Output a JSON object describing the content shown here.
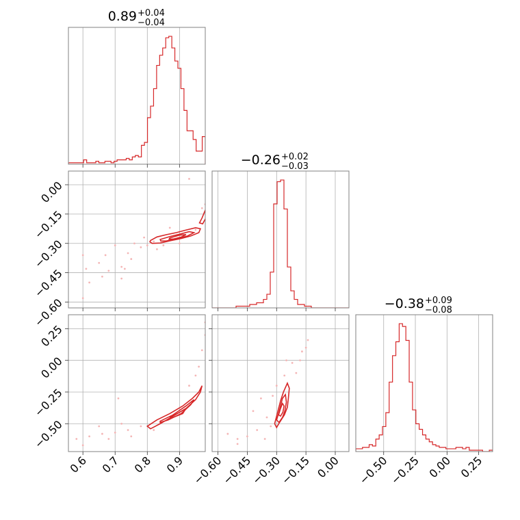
{
  "chart_data": {
    "type": "corner",
    "color": "#d62728",
    "point_color": "#f4b6b6",
    "grid": true,
    "parameters": [
      {
        "id": "p1",
        "range": [
          0.555,
          0.98
        ],
        "ticks": [
          0.6,
          0.7,
          0.8,
          0.9
        ],
        "tick_labels": [
          "0.6",
          "0.7",
          "0.8",
          "0.9"
        ],
        "title": {
          "median": "0.89",
          "upper": "+0.04",
          "lower": "−0.04"
        },
        "hist_counts": [
          1,
          1,
          1,
          1,
          1,
          3,
          1,
          1,
          1,
          2,
          1,
          1,
          2,
          2,
          1,
          2,
          3,
          3,
          3,
          4,
          3,
          5,
          6,
          5,
          13,
          15,
          32,
          40,
          52,
          68,
          75,
          80,
          87,
          88,
          80,
          71,
          66,
          52,
          37,
          23,
          23,
          17,
          9,
          9,
          19
        ]
      },
      {
        "id": "p2",
        "range": [
          -0.63,
          0.07
        ],
        "ticks": [
          0.0,
          -0.15,
          -0.3,
          -0.45,
          -0.6
        ],
        "tick_labels": [
          "0.00",
          "−0.15",
          "−0.30",
          "−0.45",
          "−0.60"
        ],
        "title": {
          "median": "−0.26",
          "upper": "+0.02",
          "lower": "−0.03"
        },
        "hist_counts": [
          0,
          0,
          0,
          0,
          0,
          0,
          0,
          1,
          1,
          1,
          1,
          2,
          2,
          3,
          3,
          5,
          8,
          21,
          61,
          74,
          75,
          58,
          24,
          10,
          5,
          2,
          2,
          1,
          1,
          0,
          0,
          0,
          0,
          0,
          0,
          0,
          0,
          0,
          0,
          0
        ]
      },
      {
        "id": "p3",
        "range": [
          -0.72,
          0.36
        ],
        "ticks": [
          0.25,
          0.0,
          -0.25,
          -0.5
        ],
        "tick_labels": [
          "0.25",
          "0.00",
          "−0.25",
          "−0.50"
        ],
        "x_ticks": [
          -0.5,
          -0.25,
          0.0,
          0.25
        ],
        "x_tick_labels": [
          "−0.50",
          "−0.25",
          "0.00",
          "0.25"
        ],
        "title": {
          "median": "−0.38",
          "upper": "+0.09",
          "lower": "−0.08"
        },
        "hist_counts": [
          2,
          2,
          3,
          3,
          5,
          4,
          9,
          12,
          18,
          28,
          50,
          69,
          79,
          92,
          90,
          80,
          50,
          30,
          20,
          16,
          12,
          9,
          7,
          5,
          4,
          3,
          3,
          2,
          2,
          2,
          3,
          3,
          2,
          3,
          1,
          1,
          1,
          1,
          0,
          0,
          1
        ]
      }
    ],
    "pairs": [
      {
        "x": "p1",
        "y": "p2",
        "contours": [
          [
            [
              0.81,
              -0.285
            ],
            [
              0.83,
              -0.267
            ],
            [
              0.86,
              -0.255
            ],
            [
              0.89,
              -0.245
            ],
            [
              0.92,
              -0.232
            ],
            [
              0.95,
              -0.22
            ],
            [
              0.965,
              -0.225
            ],
            [
              0.96,
              -0.245
            ],
            [
              0.935,
              -0.262
            ],
            [
              0.905,
              -0.275
            ],
            [
              0.87,
              -0.287
            ],
            [
              0.84,
              -0.298
            ],
            [
              0.815,
              -0.3
            ],
            [
              0.808,
              -0.292
            ]
          ],
          [
            [
              0.84,
              -0.28
            ],
            [
              0.87,
              -0.265
            ],
            [
              0.9,
              -0.253
            ],
            [
              0.93,
              -0.24
            ],
            [
              0.945,
              -0.245
            ],
            [
              0.925,
              -0.262
            ],
            [
              0.895,
              -0.275
            ],
            [
              0.86,
              -0.287
            ],
            [
              0.842,
              -0.288
            ]
          ],
          [
            [
              0.87,
              -0.272
            ],
            [
              0.9,
              -0.258
            ],
            [
              0.92,
              -0.255
            ],
            [
              0.905,
              -0.268
            ],
            [
              0.88,
              -0.278
            ],
            [
              0.868,
              -0.278
            ]
          ],
          [
            [
              0.972,
              -0.2
            ],
            [
              0.985,
              -0.16
            ],
            [
              0.98,
              -0.13
            ],
            [
              0.97,
              -0.17
            ],
            [
              0.962,
              -0.195
            ]
          ]
        ],
        "points": [
          [
            0.6,
            -0.36
          ],
          [
            0.65,
            -0.4
          ],
          [
            0.68,
            -0.44
          ],
          [
            0.72,
            -0.42
          ],
          [
            0.75,
            -0.38
          ],
          [
            0.78,
            -0.32
          ],
          [
            0.82,
            -0.29
          ],
          [
            0.76,
            -0.3
          ],
          [
            0.7,
            -0.31
          ],
          [
            0.62,
            -0.5
          ],
          [
            0.66,
            -0.47
          ],
          [
            0.74,
            -0.35
          ],
          [
            0.8,
            -0.31
          ],
          [
            0.85,
            -0.31
          ],
          [
            0.9,
            -0.3
          ],
          [
            0.95,
            -0.23
          ],
          [
            0.97,
            -0.12
          ],
          [
            0.98,
            -0.1
          ],
          [
            0.93,
            0.03
          ],
          [
            0.6,
            -0.58
          ],
          [
            0.72,
            -0.48
          ],
          [
            0.79,
            -0.27
          ],
          [
            0.87,
            -0.22
          ],
          [
            0.83,
            -0.33
          ],
          [
            0.67,
            -0.36
          ],
          [
            0.61,
            -0.43
          ],
          [
            0.73,
            -0.43
          ]
        ]
      },
      {
        "x": "p1",
        "y": "p3",
        "contours": [
          [
            [
              0.8,
              -0.52
            ],
            [
              0.83,
              -0.47
            ],
            [
              0.87,
              -0.42
            ],
            [
              0.91,
              -0.36
            ],
            [
              0.94,
              -0.3
            ],
            [
              0.96,
              -0.25
            ],
            [
              0.97,
              -0.2
            ],
            [
              0.965,
              -0.25
            ],
            [
              0.95,
              -0.31
            ],
            [
              0.92,
              -0.38
            ],
            [
              0.88,
              -0.44
            ],
            [
              0.84,
              -0.5
            ],
            [
              0.81,
              -0.54
            ]
          ],
          [
            [
              0.84,
              -0.48
            ],
            [
              0.88,
              -0.43
            ],
            [
              0.92,
              -0.36
            ],
            [
              0.945,
              -0.31
            ],
            [
              0.935,
              -0.35
            ],
            [
              0.905,
              -0.42
            ],
            [
              0.865,
              -0.47
            ],
            [
              0.84,
              -0.49
            ]
          ],
          [
            [
              0.87,
              -0.45
            ],
            [
              0.9,
              -0.41
            ],
            [
              0.92,
              -0.38
            ],
            [
              0.91,
              -0.42
            ],
            [
              0.88,
              -0.45
            ]
          ]
        ],
        "points": [
          [
            0.58,
            -0.62
          ],
          [
            0.62,
            -0.6
          ],
          [
            0.66,
            -0.58
          ],
          [
            0.7,
            -0.57
          ],
          [
            0.74,
            -0.55
          ],
          [
            0.78,
            -0.52
          ],
          [
            0.72,
            -0.5
          ],
          [
            0.65,
            -0.52
          ],
          [
            0.6,
            -0.67
          ],
          [
            0.96,
            -0.05
          ],
          [
            0.97,
            0.08
          ],
          [
            0.98,
            0.2
          ],
          [
            0.98,
            0.3
          ],
          [
            0.95,
            -0.12
          ],
          [
            0.93,
            -0.2
          ],
          [
            0.75,
            -0.6
          ],
          [
            0.68,
            -0.62
          ],
          [
            0.82,
            -0.55
          ],
          [
            0.71,
            -0.3
          ]
        ]
      },
      {
        "x": "p2",
        "y": "p3",
        "contours": [
          [
            [
              -0.31,
              -0.5
            ],
            [
              -0.3,
              -0.44
            ],
            [
              -0.29,
              -0.38
            ],
            [
              -0.28,
              -0.32
            ],
            [
              -0.265,
              -0.25
            ],
            [
              -0.245,
              -0.18
            ],
            [
              -0.235,
              -0.22
            ],
            [
              -0.24,
              -0.3
            ],
            [
              -0.245,
              -0.37
            ],
            [
              -0.26,
              -0.43
            ],
            [
              -0.285,
              -0.49
            ],
            [
              -0.3,
              -0.53
            ]
          ],
          [
            [
              -0.3,
              -0.47
            ],
            [
              -0.29,
              -0.42
            ],
            [
              -0.28,
              -0.36
            ],
            [
              -0.27,
              -0.3
            ],
            [
              -0.255,
              -0.27
            ],
            [
              -0.25,
              -0.33
            ],
            [
              -0.258,
              -0.4
            ],
            [
              -0.27,
              -0.45
            ],
            [
              -0.288,
              -0.49
            ]
          ],
          [
            [
              -0.29,
              -0.43
            ],
            [
              -0.28,
              -0.38
            ],
            [
              -0.27,
              -0.34
            ],
            [
              -0.262,
              -0.36
            ],
            [
              -0.268,
              -0.41
            ],
            [
              -0.28,
              -0.44
            ]
          ]
        ],
        "points": [
          [
            -0.4,
            -0.55
          ],
          [
            -0.45,
            -0.6
          ],
          [
            -0.5,
            -0.62
          ],
          [
            -0.55,
            -0.58
          ],
          [
            -0.35,
            -0.45
          ],
          [
            -0.33,
            -0.52
          ],
          [
            -0.2,
            -0.1
          ],
          [
            -0.18,
            0.0
          ],
          [
            -0.15,
            0.1
          ],
          [
            -0.25,
            0.0
          ],
          [
            -0.3,
            -0.2
          ],
          [
            -0.38,
            -0.3
          ],
          [
            -0.42,
            -0.4
          ],
          [
            -0.22,
            -0.02
          ],
          [
            -0.17,
            0.07
          ],
          [
            -0.14,
            0.16
          ],
          [
            -0.5,
            -0.66
          ],
          [
            -0.36,
            -0.62
          ],
          [
            -0.26,
            -0.12
          ],
          [
            -0.32,
            -0.28
          ]
        ]
      }
    ]
  }
}
